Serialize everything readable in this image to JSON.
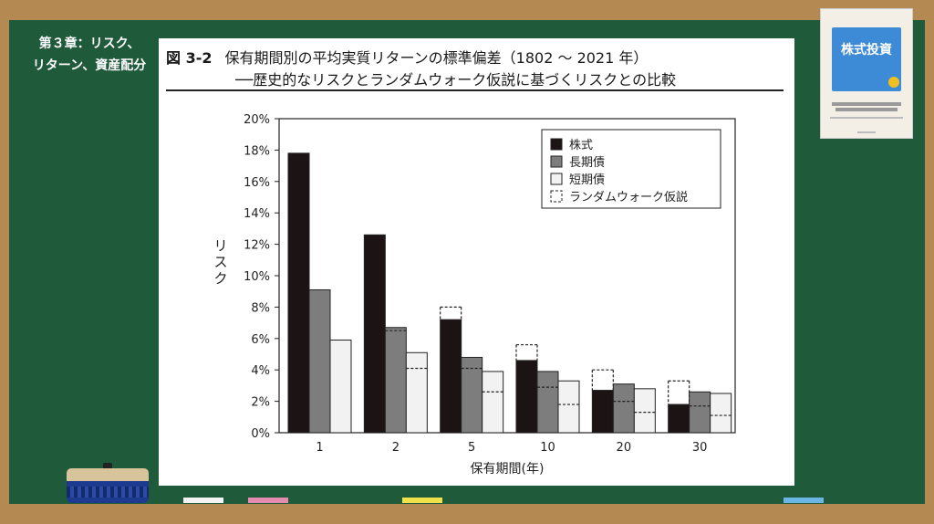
{
  "chapter_label": [
    "第３章：リスク、",
    "リターン、資産配分"
  ],
  "figure": {
    "number": "図 3-2",
    "title": "保有期間別の平均実質リターンの標準偏差（1802 ～ 2021 年）",
    "subtitle": "──歴史的なリスクとランダムウォーク仮説に基づくリスクとの比較"
  },
  "book": {
    "title": "株式投資"
  },
  "colors": {
    "board": "#1f5a3a",
    "frame": "#b58a52",
    "stocks": "#1c1414",
    "bonds": "#7d7d7d",
    "bills": "#f2f2f2"
  },
  "chart_data": {
    "type": "bar",
    "xlabel": "保有期間(年)",
    "ylabel": "リスク",
    "categories": [
      "1",
      "2",
      "5",
      "10",
      "20",
      "30"
    ],
    "ylim": [
      0,
      20
    ],
    "yticks": [
      "0%",
      "2%",
      "4%",
      "6%",
      "8%",
      "10%",
      "12%",
      "14%",
      "16%",
      "18%",
      "20%"
    ],
    "legend_position": "top-right",
    "series": [
      {
        "name": "株式",
        "values": [
          17.8,
          12.6,
          7.2,
          4.6,
          2.7,
          1.8
        ],
        "random_walk": [
          null,
          null,
          8.0,
          5.6,
          4.0,
          3.3
        ]
      },
      {
        "name": "長期債",
        "values": [
          9.1,
          6.7,
          4.8,
          3.9,
          3.1,
          2.6
        ],
        "random_walk": [
          null,
          6.5,
          4.1,
          2.9,
          2.0,
          1.7
        ]
      },
      {
        "name": "短期債",
        "values": [
          5.9,
          5.1,
          3.9,
          3.3,
          2.8,
          2.5
        ],
        "random_walk": [
          null,
          4.1,
          2.6,
          1.8,
          1.3,
          1.1
        ]
      }
    ],
    "random_walk_label": "ランダムウォーク仮説"
  }
}
